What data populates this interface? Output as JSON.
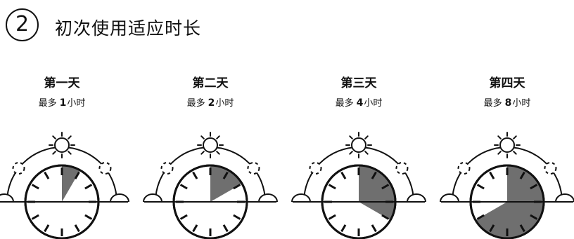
{
  "step": {
    "number": "2",
    "title": "初次使用适应时长"
  },
  "colors": {
    "ink": "#111111",
    "usage_fill": "#6f6f6f",
    "background": "#ffffff"
  },
  "days": [
    {
      "title": "第一天",
      "prefix": "最多",
      "hours": "1",
      "suffix": "小时",
      "max_hours": 1
    },
    {
      "title": "第二天",
      "prefix": "最多",
      "hours": "2",
      "suffix": "小时",
      "max_hours": 2
    },
    {
      "title": "第三天",
      "prefix": "最多",
      "hours": "4",
      "suffix": "小时",
      "max_hours": 4
    },
    {
      "title": "第四天",
      "prefix": "最多",
      "hours": "8",
      "suffix": "小时",
      "max_hours": 8
    }
  ]
}
